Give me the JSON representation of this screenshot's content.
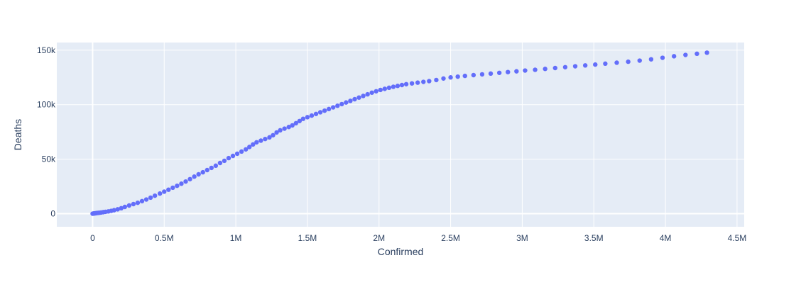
{
  "chart_data": {
    "type": "scatter",
    "title": "",
    "xlabel": "Confirmed",
    "ylabel": "Deaths",
    "xlim": [
      -250000,
      4550000
    ],
    "ylim": [
      -12000,
      157000
    ],
    "x_ticks": [
      {
        "value": 0,
        "label": "0"
      },
      {
        "value": 500000,
        "label": "0.5M"
      },
      {
        "value": 1000000,
        "label": "1M"
      },
      {
        "value": 1500000,
        "label": "1.5M"
      },
      {
        "value": 2000000,
        "label": "2M"
      },
      {
        "value": 2500000,
        "label": "2.5M"
      },
      {
        "value": 3000000,
        "label": "3M"
      },
      {
        "value": 3500000,
        "label": "3.5M"
      },
      {
        "value": 4000000,
        "label": "4M"
      },
      {
        "value": 4500000,
        "label": "4.5M"
      }
    ],
    "y_ticks": [
      {
        "value": 0,
        "label": "0"
      },
      {
        "value": 50000,
        "label": "50k"
      },
      {
        "value": 100000,
        "label": "100k"
      },
      {
        "value": 150000,
        "label": "150k"
      }
    ],
    "grid": true,
    "colors": {
      "plot_bg": "#e5ecf6",
      "grid": "#ffffff",
      "marker": "#636efa",
      "text": "#2a3f5f"
    },
    "series": [
      {
        "points": [
          [
            0,
            0
          ],
          [
            5000,
            100
          ],
          [
            10000,
            200
          ],
          [
            15000,
            300
          ],
          [
            20000,
            400
          ],
          [
            25000,
            500
          ],
          [
            30000,
            600
          ],
          [
            40000,
            750
          ],
          [
            50000,
            900
          ],
          [
            60000,
            1100
          ],
          [
            75000,
            1400
          ],
          [
            90000,
            1700
          ],
          [
            110000,
            2100
          ],
          [
            130000,
            2600
          ],
          [
            150000,
            3200
          ],
          [
            175000,
            4000
          ],
          [
            200000,
            5000
          ],
          [
            225000,
            6200
          ],
          [
            255000,
            7500
          ],
          [
            285000,
            8800
          ],
          [
            315000,
            10000
          ],
          [
            345000,
            11500
          ],
          [
            375000,
            13000
          ],
          [
            405000,
            14700
          ],
          [
            435000,
            16500
          ],
          [
            470000,
            18500
          ],
          [
            500000,
            20200
          ],
          [
            530000,
            22000
          ],
          [
            560000,
            23800
          ],
          [
            590000,
            25600
          ],
          [
            620000,
            27500
          ],
          [
            650000,
            29500
          ],
          [
            680000,
            31700
          ],
          [
            710000,
            34000
          ],
          [
            740000,
            36100
          ],
          [
            770000,
            38000
          ],
          [
            800000,
            40000
          ],
          [
            830000,
            42000
          ],
          [
            860000,
            44000
          ],
          [
            890000,
            46500
          ],
          [
            920000,
            48500
          ],
          [
            950000,
            51000
          ],
          [
            980000,
            53000
          ],
          [
            1010000,
            55000
          ],
          [
            1040000,
            57000
          ],
          [
            1070000,
            59000
          ],
          [
            1095000,
            61200
          ],
          [
            1120000,
            63500
          ],
          [
            1145000,
            65500
          ],
          [
            1175000,
            67000
          ],
          [
            1205000,
            68500
          ],
          [
            1235000,
            70000
          ],
          [
            1260000,
            72000
          ],
          [
            1285000,
            74500
          ],
          [
            1310000,
            76500
          ],
          [
            1340000,
            78000
          ],
          [
            1370000,
            79500
          ],
          [
            1395000,
            81000
          ],
          [
            1420000,
            83000
          ],
          [
            1445000,
            85000
          ],
          [
            1470000,
            87000
          ],
          [
            1500000,
            88500
          ],
          [
            1530000,
            90000
          ],
          [
            1560000,
            91500
          ],
          [
            1590000,
            93000
          ],
          [
            1620000,
            94500
          ],
          [
            1650000,
            96000
          ],
          [
            1680000,
            97500
          ],
          [
            1710000,
            99000
          ],
          [
            1740000,
            100500
          ],
          [
            1770000,
            102000
          ],
          [
            1800000,
            103500
          ],
          [
            1830000,
            105000
          ],
          [
            1860000,
            106500
          ],
          [
            1890000,
            108000
          ],
          [
            1920000,
            109500
          ],
          [
            1950000,
            111000
          ],
          [
            1980000,
            112300
          ],
          [
            2010000,
            113500
          ],
          [
            2040000,
            114500
          ],
          [
            2070000,
            115500
          ],
          [
            2100000,
            116400
          ],
          [
            2130000,
            117200
          ],
          [
            2160000,
            118000
          ],
          [
            2190000,
            118800
          ],
          [
            2230000,
            119500
          ],
          [
            2270000,
            120200
          ],
          [
            2310000,
            120900
          ],
          [
            2350000,
            121600
          ],
          [
            2400000,
            122600
          ],
          [
            2450000,
            124000
          ],
          [
            2500000,
            125000
          ],
          [
            2550000,
            125700
          ],
          [
            2600000,
            126400
          ],
          [
            2660000,
            127100
          ],
          [
            2720000,
            127800
          ],
          [
            2780000,
            128500
          ],
          [
            2840000,
            129200
          ],
          [
            2900000,
            129900
          ],
          [
            2960000,
            130600
          ],
          [
            3020000,
            131300
          ],
          [
            3090000,
            132000
          ],
          [
            3160000,
            132800
          ],
          [
            3230000,
            133600
          ],
          [
            3300000,
            134400
          ],
          [
            3370000,
            135200
          ],
          [
            3440000,
            136000
          ],
          [
            3510000,
            136800
          ],
          [
            3580000,
            137600
          ],
          [
            3660000,
            138500
          ],
          [
            3740000,
            139400
          ],
          [
            3820000,
            140400
          ],
          [
            3900000,
            141600
          ],
          [
            3980000,
            143000
          ],
          [
            4060000,
            144400
          ],
          [
            4140000,
            145600
          ],
          [
            4220000,
            146700
          ],
          [
            4290000,
            147700
          ]
        ]
      }
    ]
  }
}
